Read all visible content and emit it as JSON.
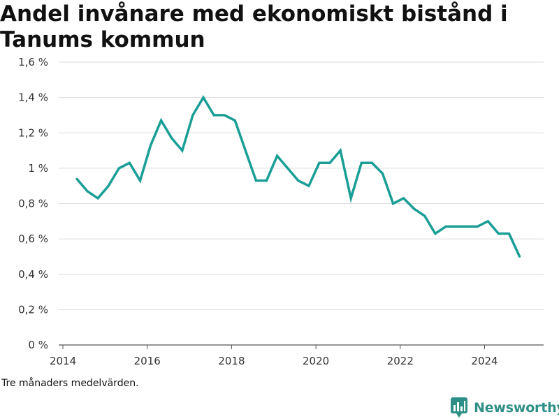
{
  "chart_data": {
    "type": "line",
    "title": "Andel invånare med ekonomiskt bistånd i Tanums kommun",
    "note": "Tre månaders medelvärden.",
    "ylim": [
      0,
      1.6
    ],
    "xlim": [
      2013.9,
      2025.4
    ],
    "y_ticks": [
      {
        "value": 0,
        "label": "0 %"
      },
      {
        "value": 0.2,
        "label": "0,2 %"
      },
      {
        "value": 0.4,
        "label": "0,4 %"
      },
      {
        "value": 0.6,
        "label": "0,6 %"
      },
      {
        "value": 0.8,
        "label": "0,8 %"
      },
      {
        "value": 1.0,
        "label": "1 %"
      },
      {
        "value": 1.2,
        "label": "1,2 %"
      },
      {
        "value": 1.4,
        "label": "1,4 %"
      },
      {
        "value": 1.6,
        "label": "1,6 %"
      }
    ],
    "x_ticks": [
      {
        "value": 2014,
        "label": "2014"
      },
      {
        "value": 2016,
        "label": "2016"
      },
      {
        "value": 2018,
        "label": "2018"
      },
      {
        "value": 2020,
        "label": "2020"
      },
      {
        "value": 2022,
        "label": "2022"
      },
      {
        "value": 2024,
        "label": "2024"
      }
    ],
    "grid": true,
    "line_color": "#1a9e96",
    "series": [
      {
        "x": [
          2014.33,
          2014.58,
          2014.83,
          2015.08,
          2015.33,
          2015.58,
          2015.83,
          2016.08,
          2016.33,
          2016.58,
          2016.83,
          2017.08,
          2017.33,
          2017.58,
          2017.83,
          2018.08,
          2018.33,
          2018.58,
          2018.83,
          2019.08,
          2019.33,
          2019.58,
          2019.83,
          2020.08,
          2020.33,
          2020.58,
          2020.83,
          2021.08,
          2021.33,
          2021.58,
          2021.83,
          2022.08,
          2022.33,
          2022.58,
          2022.83,
          2023.08,
          2023.33,
          2023.58,
          2023.83,
          2024.08,
          2024.33,
          2024.58,
          2024.83
        ],
        "values": [
          0.94,
          0.87,
          0.83,
          0.9,
          1.0,
          1.03,
          0.93,
          1.13,
          1.27,
          1.17,
          1.1,
          1.3,
          1.4,
          1.3,
          1.3,
          1.27,
          1.1,
          0.93,
          0.93,
          1.07,
          1.0,
          0.93,
          0.9,
          1.03,
          1.03,
          1.1,
          0.83,
          1.03,
          1.03,
          0.97,
          0.8,
          0.83,
          0.77,
          0.73,
          0.63,
          0.67,
          0.67,
          0.67,
          0.67,
          0.7,
          0.63,
          0.63,
          0.5
        ]
      }
    ]
  },
  "brand": {
    "name": "Newsworthy",
    "logo_icon": "newsworthy-logo-icon",
    "color": "#2e8f87"
  }
}
